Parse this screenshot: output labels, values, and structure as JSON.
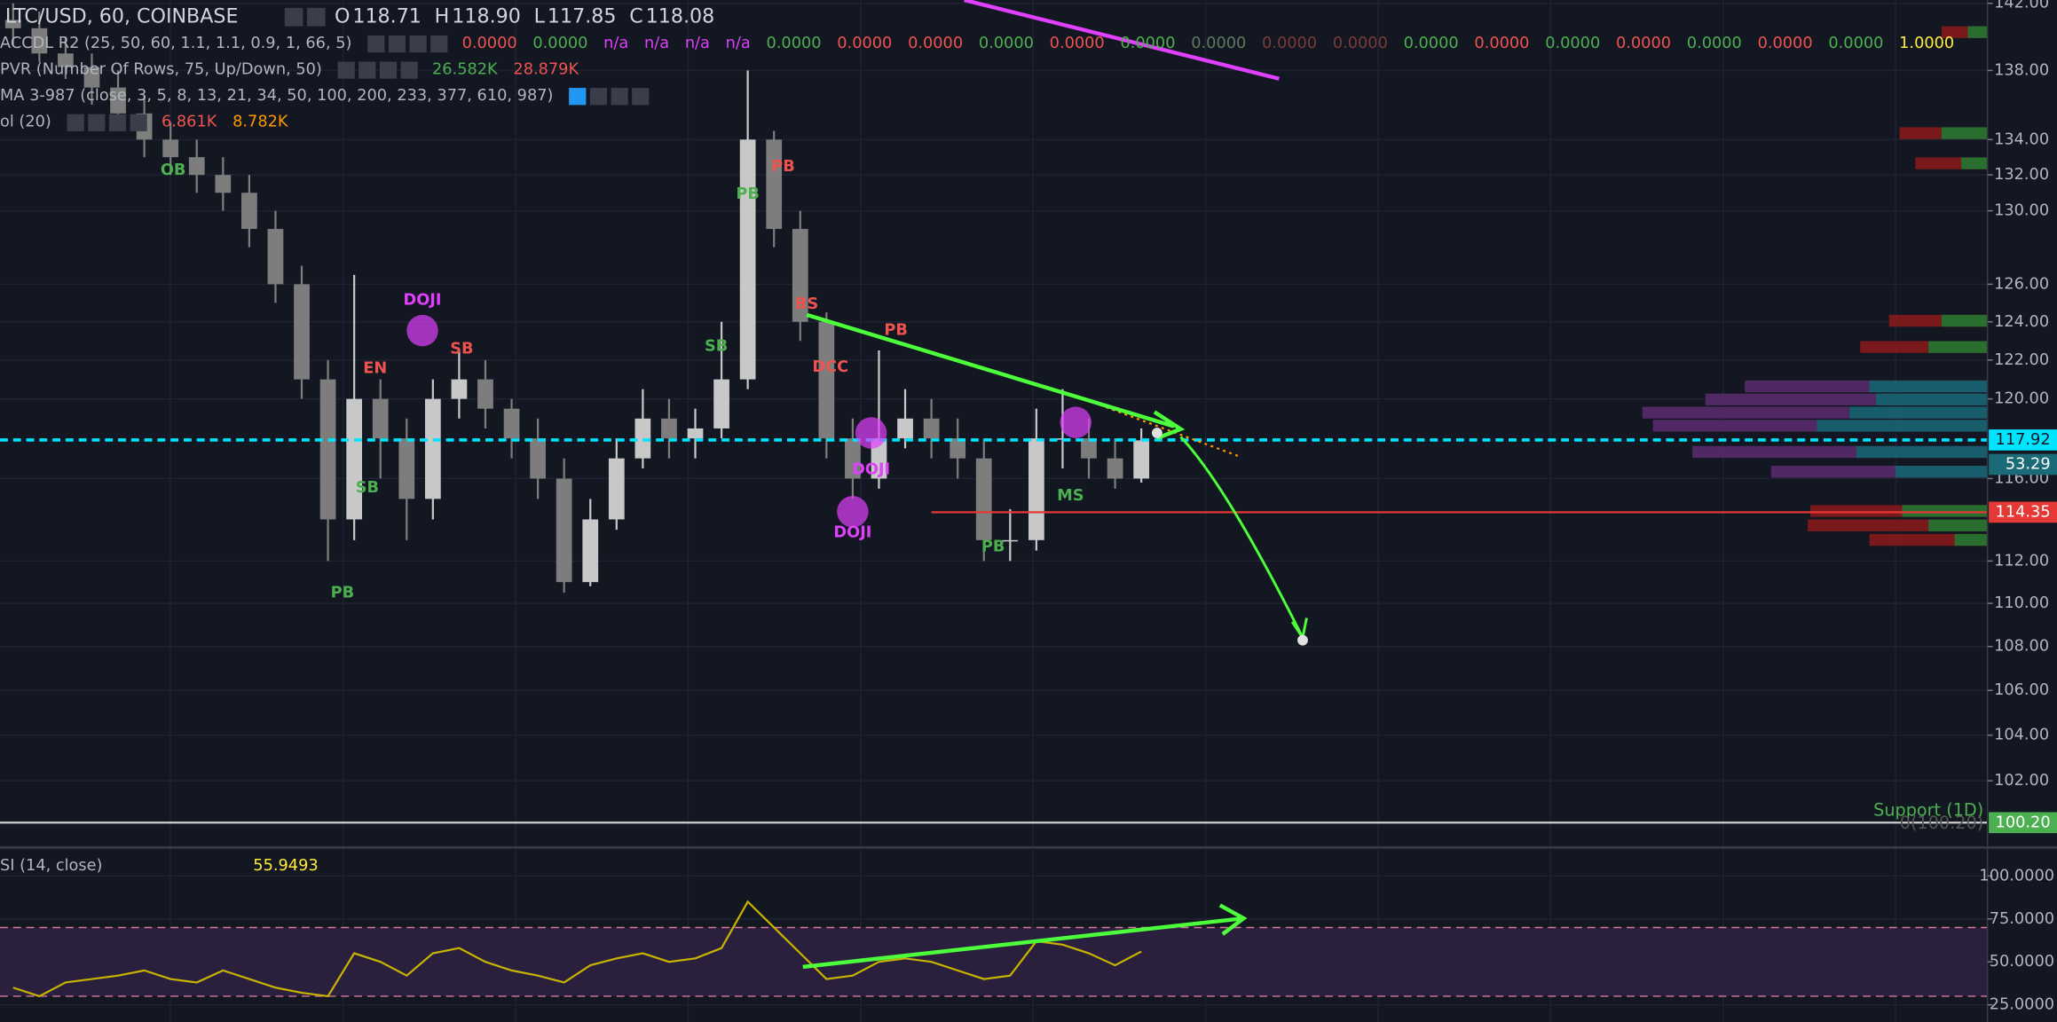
{
  "header": {
    "symbol": "LTC/USD, 60, COINBASE",
    "ohlc": [
      {
        "key": "O",
        "value": "118.71"
      },
      {
        "key": "H",
        "value": "118.90"
      },
      {
        "key": "L",
        "value": "117.85"
      },
      {
        "key": "C",
        "value": "118.08"
      }
    ]
  },
  "indicators": [
    {
      "name": "ACCDL R2 (25, 50, 60, 1.1, 1.1, 0.9, 1, 66, 5)",
      "values": [
        "0.0000",
        "0.0000",
        "n/a",
        "n/a",
        "n/a",
        "n/a",
        "0.0000",
        "0.0000",
        "0.0000",
        "0.0000",
        "0.0000",
        "0.0000",
        "0.0000",
        "0.0000",
        "0.0000",
        "0.0000",
        "0.0000",
        "0.0000",
        "0.0000",
        "0.0000",
        "0.0000",
        "0.0000",
        "1.0000"
      ],
      "colors": [
        "#ef5350",
        "#4caf50",
        "#e040fb",
        "#e040fb",
        "#e040fb",
        "#e040fb",
        "#4caf50",
        "#ef5350",
        "#ef5350",
        "#4caf50",
        "#ef5350",
        "#4caf50",
        "#5d7a5d",
        "#7a3a3a",
        "#7a3a3a",
        "#4caf50",
        "#ef5350",
        "#4caf50",
        "#ef5350",
        "#4caf50",
        "#ef5350",
        "#4caf50",
        "#ffeb3b"
      ]
    },
    {
      "name": "PVR (Number Of Rows, 75, Up/Down, 50)",
      "values": [
        "26.582K",
        "28.879K"
      ],
      "colors": [
        "#4caf50",
        "#ef5350"
      ]
    },
    {
      "name": "MA 3-987 (close, 3, 5, 8, 13, 21, 34, 50, 100, 200, 233, 377, 610, 987)",
      "values": [],
      "colors": []
    },
    {
      "name": "ol (20)",
      "values": [
        "6.861K",
        "8.782K"
      ],
      "colors": [
        "#ef5350",
        "#ff9800"
      ]
    }
  ],
  "chart_data": [
    {
      "type": "candlestick",
      "open": [
        141.0,
        140.5,
        139.0,
        138.2,
        137.0,
        135.5,
        134.0,
        133.0,
        132.0,
        131.0,
        129.0,
        126.0,
        121.0,
        114.0,
        120.0,
        118.0,
        115.0,
        120.0,
        121.0,
        119.5,
        118.0,
        116.0,
        111.0,
        114.0,
        117.0,
        119.0,
        118.0,
        118.5,
        121.0,
        134.0,
        129.0,
        124.0,
        118.0,
        116.0,
        118.0,
        119.0,
        118.0,
        117.0,
        113.0,
        113.0,
        118.0,
        118.0,
        117.0,
        116.0
      ],
      "high": [
        142.0,
        141.5,
        140.0,
        139.0,
        138.0,
        136.5,
        135.0,
        134.0,
        133.0,
        132.0,
        130.0,
        127.0,
        122.0,
        126.5,
        121.0,
        119.0,
        121.0,
        122.5,
        122.0,
        120.0,
        119.0,
        117.0,
        115.0,
        118.0,
        120.5,
        120.0,
        119.5,
        124.0,
        138.0,
        134.5,
        130.0,
        124.5,
        119.0,
        122.5,
        120.5,
        120.0,
        119.0,
        118.0,
        114.5,
        119.5,
        120.5,
        119.0,
        118.0,
        118.5
      ],
      "low": [
        139.5,
        138.5,
        137.5,
        136.0,
        134.5,
        133.0,
        132.0,
        131.0,
        130.0,
        128.0,
        125.0,
        120.0,
        112.0,
        113.0,
        116.0,
        113.0,
        114.0,
        119.0,
        118.5,
        117.0,
        115.0,
        110.5,
        110.8,
        113.5,
        116.5,
        117.0,
        117.0,
        118.0,
        120.5,
        128.0,
        123.0,
        117.0,
        115.0,
        115.5,
        117.5,
        117.0,
        116.0,
        112.0,
        112.0,
        112.5,
        116.5,
        116.0,
        115.5,
        115.8
      ],
      "close": [
        140.5,
        139.0,
        138.2,
        137.0,
        135.5,
        134.0,
        133.0,
        132.0,
        131.0,
        129.0,
        126.0,
        121.0,
        114.0,
        120.0,
        118.0,
        115.0,
        120.0,
        121.0,
        119.5,
        118.0,
        116.0,
        111.0,
        114.0,
        117.0,
        119.0,
        118.0,
        118.5,
        121.0,
        134.0,
        129.0,
        124.0,
        118.0,
        116.0,
        118.0,
        119.0,
        118.0,
        117.0,
        113.0,
        113.0,
        118.0,
        118.0,
        117.0,
        116.0,
        117.9
      ],
      "up_color": "#c8c8c8",
      "down_color": "#7d7d7d",
      "ylim": [
        99.2,
        142.2
      ],
      "log_scale": true,
      "grid": true,
      "yticks": [
        {
          "value": 142,
          "label": "142.00"
        },
        {
          "value": 138,
          "label": "138.00"
        },
        {
          "value": 134,
          "label": "134.00"
        },
        {
          "value": 132,
          "label": "132.00"
        },
        {
          "value": 130,
          "label": "130.00"
        },
        {
          "value": 126,
          "label": "126.00"
        },
        {
          "value": 124,
          "label": "124.00"
        },
        {
          "value": 122,
          "label": "122.00"
        },
        {
          "value": 120,
          "label": "120.00"
        },
        {
          "value": 116,
          "label": "116.00"
        },
        {
          "value": 112,
          "label": "112.00"
        },
        {
          "value": 110,
          "label": "110.00"
        },
        {
          "value": 108,
          "label": "108.00"
        },
        {
          "value": 106,
          "label": "106.00"
        },
        {
          "value": 104,
          "label": "104.00"
        },
        {
          "value": 102,
          "label": "102.00"
        }
      ],
      "price_lines": [
        {
          "value": 117.92,
          "label": "117.92",
          "color": "#00e5ff"
        },
        {
          "value": 114.35,
          "label": "114.35",
          "color": "#e53935"
        },
        {
          "value": 100.2,
          "label": "100.20",
          "color": "#4caf50"
        }
      ],
      "support_label": "Support (1D)",
      "support_note": "0(100.20)",
      "badge": "53.29",
      "pattern_labels": [
        "DOJI",
        "EN",
        "SB",
        "PB",
        "DOJI",
        "DOJI",
        "PB",
        "PB",
        "BS",
        "PB",
        "DCC",
        "MS",
        "SB",
        "SB",
        "OB",
        "PB"
      ],
      "pattern_colors": [
        "#e040fb",
        "#ef5350",
        "#4caf50",
        "#4caf50",
        "#e040fb",
        "#e040fb",
        "#ef5350",
        "#4caf50",
        "#ef5350",
        "#ef5350",
        "#ef5350",
        "#4caf50",
        "#4caf50",
        "#ef5350",
        "#4caf50",
        "#4caf50"
      ]
    },
    {
      "type": "line",
      "title": "SI (14, close)",
      "last_value": "55.9493",
      "values": [
        35,
        30,
        38,
        40,
        42,
        45,
        40,
        38,
        45,
        40,
        35,
        32,
        30,
        55,
        50,
        42,
        55,
        58,
        50,
        45,
        42,
        38,
        48,
        52,
        55,
        50,
        52,
        58,
        85,
        70,
        55,
        40,
        42,
        50,
        52,
        50,
        45,
        40,
        42,
        62,
        60,
        55,
        48,
        56
      ],
      "color": "#c8b400",
      "band": [
        30,
        70
      ],
      "band_color": "#2a1f3d",
      "ylim": [
        15,
        115
      ],
      "yticks": [
        {
          "value": 100,
          "label": "100.0000"
        },
        {
          "value": 75,
          "label": "75.0000"
        },
        {
          "value": 50,
          "label": "50.0000"
        },
        {
          "value": 25,
          "label": "25.0000"
        }
      ]
    }
  ]
}
